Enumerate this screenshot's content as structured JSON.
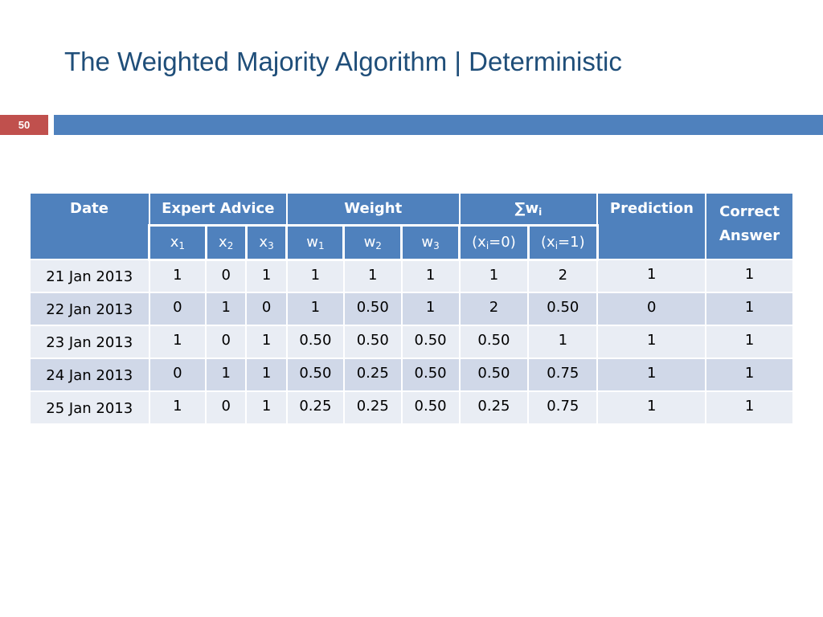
{
  "slide": {
    "title": "The Weighted Majority Algorithm | Deterministic",
    "number": "50",
    "colors": {
      "title_text": "#1F4E79",
      "accent_bar": "#4F81BD",
      "number_badge": "#C0504D",
      "header_fill": "#4F81BD",
      "row_light": "#E9EDF4",
      "row_dark": "#D0D8E8"
    }
  },
  "table": {
    "headers": {
      "date": "Date",
      "expert_advice": "Expert Advice",
      "weight": "Weight",
      "sum_w": "∑w",
      "sum_w_sub": "i",
      "prediction": "Prediction",
      "correct_line1": "Correct",
      "correct_line2": "Answer"
    },
    "subheaders": {
      "x1": "x",
      "x1_sub": "1",
      "x2": "x",
      "x2_sub": "2",
      "x3": "x",
      "x3_sub": "3",
      "w1": "w",
      "w1_sub": "1",
      "w2": "w",
      "w2_sub": "2",
      "w3": "w",
      "w3_sub": "3",
      "xi0_open": "(x",
      "xi0_sub": "i",
      "xi0_close": "=0)",
      "xi1_open": "(x",
      "xi1_sub": "i",
      "xi1_close": "=1)"
    },
    "rows": [
      {
        "date": "21 Jan 2013",
        "x1": "1",
        "x2": "0",
        "x3": "1",
        "w1": "1",
        "w2": "1",
        "w3": "1",
        "sum0": "1",
        "sum1": "2",
        "prediction": "1",
        "correct": "1"
      },
      {
        "date": "22 Jan 2013",
        "x1": "0",
        "x2": "1",
        "x3": "0",
        "w1": "1",
        "w2": "0.50",
        "w3": "1",
        "sum0": "2",
        "sum1": "0.50",
        "prediction": "0",
        "correct": "1"
      },
      {
        "date": "23 Jan 2013",
        "x1": "1",
        "x2": "0",
        "x3": "1",
        "w1": "0.50",
        "w2": "0.50",
        "w3": "0.50",
        "sum0": "0.50",
        "sum1": "1",
        "prediction": "1",
        "correct": "1"
      },
      {
        "date": "24 Jan 2013",
        "x1": "0",
        "x2": "1",
        "x3": "1",
        "w1": "0.50",
        "w2": "0.25",
        "w3": "0.50",
        "sum0": "0.50",
        "sum1": "0.75",
        "prediction": "1",
        "correct": "1"
      },
      {
        "date": "25 Jan 2013",
        "x1": "1",
        "x2": "0",
        "x3": "1",
        "w1": "0.25",
        "w2": "0.25",
        "w3": "0.50",
        "sum0": "0.25",
        "sum1": "0.75",
        "prediction": "1",
        "correct": "1"
      }
    ]
  }
}
